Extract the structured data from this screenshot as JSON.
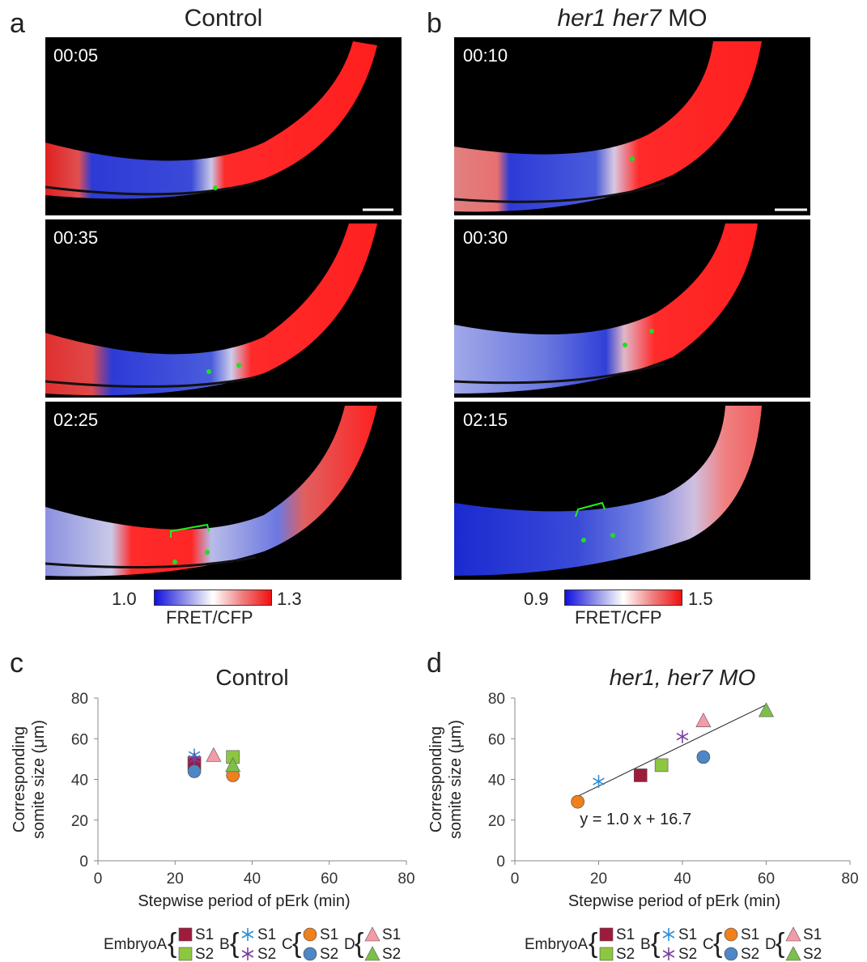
{
  "panel_a": {
    "letter": "a",
    "title": "Control",
    "timestamps": [
      "00:05",
      "00:35",
      "02:25"
    ],
    "colorbar": {
      "min": "1.0",
      "max": "1.3",
      "label": "FRET/CFP"
    }
  },
  "panel_b": {
    "letter": "b",
    "title_italic": "her1 her7",
    "title_rest": " MO",
    "timestamps": [
      "00:10",
      "00:30",
      "02:15"
    ],
    "colorbar": {
      "min": "0.9",
      "max": "1.5",
      "label": "FRET/CFP"
    }
  },
  "panel_c": {
    "letter": "c"
  },
  "panel_d": {
    "letter": "d"
  },
  "colors": {
    "embryoA_s1": "#9e1b3c",
    "embryoA_s2": "#8dc63f",
    "embryoB": "#2e8fd6",
    "embryoB_s2": "#7b3f9e",
    "embryoC_s1": "#f07f1d",
    "embryoC_s2": "#4e86c6",
    "embryoD_s1": "#f59aa7",
    "embryoD_s2": "#7cc04a"
  },
  "legend": {
    "groups": [
      {
        "label": "EmbryoA",
        "s1": "S1",
        "s2": "S2"
      },
      {
        "label": "B",
        "s1": "S1",
        "s2": "S2"
      },
      {
        "label": "C",
        "s1": "S1",
        "s2": "S2"
      },
      {
        "label": "D",
        "s1": "S1",
        "s2": "S2"
      }
    ]
  },
  "chart_data": [
    {
      "type": "scatter",
      "title": "Control",
      "xlabel": "Stepwise period of pErk (min)",
      "ylabel_line1": "Corresponding",
      "ylabel_line2": "somite size (μm)",
      "xlim": [
        0,
        80
      ],
      "ylim": [
        0,
        80
      ],
      "xticks": [
        "0",
        "20",
        "40",
        "60",
        "80"
      ],
      "yticks": [
        "0",
        "20",
        "40",
        "60",
        "80"
      ],
      "series": [
        {
          "name": "EmbryoA S1",
          "marker": "square",
          "color": "#9e1b3c",
          "points": [
            [
              25,
              48
            ]
          ]
        },
        {
          "name": "EmbryoA S2",
          "marker": "square",
          "color": "#8dc63f",
          "points": [
            [
              35,
              51
            ]
          ]
        },
        {
          "name": "B S1",
          "marker": "asterisk",
          "color": "#2e8fd6",
          "points": [
            [
              25,
              52
            ]
          ]
        },
        {
          "name": "B S2",
          "marker": "asterisk",
          "color": "#7b3f9e",
          "points": [
            [
              25,
              50
            ]
          ]
        },
        {
          "name": "C S1",
          "marker": "circle",
          "color": "#f07f1d",
          "points": [
            [
              35,
              42
            ]
          ]
        },
        {
          "name": "C S2",
          "marker": "circle",
          "color": "#4e86c6",
          "points": [
            [
              25,
              44
            ]
          ]
        },
        {
          "name": "D S1",
          "marker": "triangle",
          "color": "#f59aa7",
          "points": [
            [
              30,
              52
            ]
          ]
        },
        {
          "name": "D S2",
          "marker": "triangle",
          "color": "#7cc04a",
          "points": [
            [
              35,
              47
            ]
          ]
        }
      ]
    },
    {
      "type": "scatter",
      "title": "her1, her7 MO",
      "xlabel": "Stepwise period of pErk (min)",
      "ylabel_line1": "Corresponding",
      "ylabel_line2": "somite size (μm)",
      "xlim": [
        0,
        80
      ],
      "ylim": [
        0,
        80
      ],
      "xticks": [
        "0",
        "20",
        "40",
        "60",
        "80"
      ],
      "yticks": [
        "0",
        "20",
        "40",
        "60",
        "80"
      ],
      "equation": "y = 1.0 x + 16.7",
      "fit": {
        "slope": 1.0,
        "intercept": 16.7,
        "x_range": [
          15,
          60
        ]
      },
      "series": [
        {
          "name": "EmbryoA S1",
          "marker": "square",
          "color": "#9e1b3c",
          "points": [
            [
              30,
              42
            ]
          ]
        },
        {
          "name": "EmbryoA S2",
          "marker": "square",
          "color": "#8dc63f",
          "points": [
            [
              35,
              47
            ]
          ]
        },
        {
          "name": "B S1",
          "marker": "asterisk",
          "color": "#2e8fd6",
          "points": [
            [
              20,
              39
            ]
          ]
        },
        {
          "name": "B S2",
          "marker": "asterisk",
          "color": "#7b3f9e",
          "points": [
            [
              40,
              61
            ]
          ]
        },
        {
          "name": "C S1",
          "marker": "circle",
          "color": "#f07f1d",
          "points": [
            [
              15,
              29
            ]
          ]
        },
        {
          "name": "C S2",
          "marker": "circle",
          "color": "#4e86c6",
          "points": [
            [
              45,
              51
            ]
          ]
        },
        {
          "name": "D S1",
          "marker": "triangle",
          "color": "#f59aa7",
          "points": [
            [
              45,
              69
            ]
          ]
        },
        {
          "name": "D S2",
          "marker": "triangle",
          "color": "#7cc04a",
          "points": [
            [
              60,
              74
            ]
          ]
        }
      ]
    }
  ]
}
